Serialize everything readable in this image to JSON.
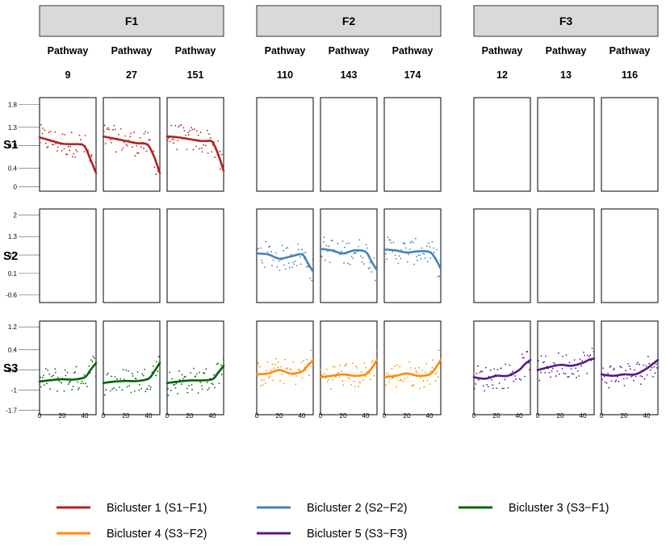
{
  "chart_data": {
    "type": "line",
    "facet_columns": [
      {
        "id": "F1",
        "label": "F1",
        "pathways": [
          {
            "line1": "Pathway",
            "line2": "9"
          },
          {
            "line1": "Pathway",
            "line2": "27"
          },
          {
            "line1": "Pathway",
            "line2": "151"
          }
        ]
      },
      {
        "id": "F2",
        "label": "F2",
        "pathways": [
          {
            "line1": "Pathway",
            "line2": "110"
          },
          {
            "line1": "Pathway",
            "line2": "143"
          },
          {
            "line1": "Pathway",
            "line2": "174"
          }
        ]
      },
      {
        "id": "F3",
        "label": "F3",
        "pathways": [
          {
            "line1": "Pathway",
            "line2": "12"
          },
          {
            "line1": "Pathway",
            "line2": "13"
          },
          {
            "line1": "Pathway",
            "line2": "116"
          }
        ]
      }
    ],
    "facet_rows": [
      {
        "id": "S1",
        "label": "S1",
        "y_ticks": [
          "1.8",
          "1.3",
          "0.9",
          "0.4",
          "0"
        ],
        "y_tick_values": [
          1.8,
          1.3,
          0.9,
          0.4,
          0
        ],
        "ylim": [
          -0.1,
          1.95
        ]
      },
      {
        "id": "S2",
        "label": "S2",
        "y_ticks": [
          "2",
          "1.3",
          "0.7",
          "0.1",
          "-0.6"
        ],
        "y_tick_values": [
          2,
          1.3,
          0.7,
          0.1,
          -0.6
        ],
        "ylim": [
          -0.85,
          2.2
        ]
      },
      {
        "id": "S3",
        "label": "S3",
        "y_ticks": [
          "1.2",
          "0.4",
          "-0.3",
          "-1",
          "-1.7"
        ],
        "y_tick_values": [
          1.2,
          0.4,
          -0.3,
          -1,
          -1.7
        ],
        "ylim": [
          -1.85,
          1.4
        ]
      }
    ],
    "x_ticks": [
      "0",
      "20",
      "40"
    ],
    "x_tick_values": [
      0,
      20,
      40
    ],
    "xlim": [
      0,
      50
    ],
    "series": [
      {
        "name": "Bicluster 1 (S1−F1)",
        "row": 0,
        "col_group": 0,
        "color": "#b22222",
        "panels": [
          {
            "x": [
              0,
              10,
              20,
              30,
              35,
              40,
              45,
              50
            ],
            "y": [
              1.08,
              1.01,
              0.94,
              0.93,
              0.93,
              0.88,
              0.6,
              0.3
            ]
          },
          {
            "x": [
              0,
              10,
              20,
              30,
              35,
              40,
              45,
              50
            ],
            "y": [
              1.1,
              1.05,
              1.0,
              0.95,
              0.95,
              0.9,
              0.65,
              0.3
            ]
          },
          {
            "x": [
              0,
              10,
              20,
              30,
              35,
              40,
              45,
              50
            ],
            "y": [
              1.1,
              1.08,
              1.04,
              1.0,
              1.0,
              0.98,
              0.72,
              0.35
            ]
          }
        ]
      },
      {
        "name": "Bicluster 2 (S2−F2)",
        "row": 1,
        "col_group": 1,
        "color": "#4682b4",
        "panels": [
          {
            "x": [
              0,
              10,
              20,
              30,
              40,
              45,
              50
            ],
            "y": [
              0.75,
              0.72,
              0.58,
              0.65,
              0.72,
              0.45,
              0.15
            ]
          },
          {
            "x": [
              0,
              10,
              20,
              30,
              40,
              45,
              50
            ],
            "y": [
              0.9,
              0.85,
              0.75,
              0.85,
              0.8,
              0.5,
              0.2
            ]
          },
          {
            "x": [
              0,
              10,
              20,
              30,
              40,
              45,
              50
            ],
            "y": [
              0.88,
              0.85,
              0.78,
              0.82,
              0.8,
              0.6,
              0.25
            ]
          }
        ]
      },
      {
        "name": "Bicluster 3 (S3−F1)",
        "row": 2,
        "col_group": 0,
        "color": "#006400",
        "panels": [
          {
            "x": [
              0,
              10,
              20,
              30,
              40,
              45,
              50
            ],
            "y": [
              -0.7,
              -0.65,
              -0.62,
              -0.63,
              -0.55,
              -0.3,
              -0.05
            ]
          },
          {
            "x": [
              0,
              10,
              20,
              30,
              40,
              45,
              50
            ],
            "y": [
              -0.75,
              -0.7,
              -0.68,
              -0.68,
              -0.6,
              -0.35,
              -0.05
            ]
          },
          {
            "x": [
              0,
              10,
              20,
              30,
              40,
              45,
              50
            ],
            "y": [
              -0.75,
              -0.7,
              -0.66,
              -0.66,
              -0.62,
              -0.4,
              -0.15
            ]
          }
        ]
      },
      {
        "name": "Bicluster 4 (S3−F2)",
        "row": 2,
        "col_group": 1,
        "color": "#ff8c00",
        "panels": [
          {
            "x": [
              0,
              10,
              20,
              30,
              40,
              45,
              50
            ],
            "y": [
              -0.45,
              -0.42,
              -0.3,
              -0.42,
              -0.35,
              -0.15,
              0.05
            ]
          },
          {
            "x": [
              0,
              10,
              20,
              30,
              40,
              45,
              50
            ],
            "y": [
              -0.55,
              -0.5,
              -0.45,
              -0.5,
              -0.45,
              -0.25,
              0.05
            ]
          },
          {
            "x": [
              0,
              10,
              20,
              30,
              40,
              45,
              50
            ],
            "y": [
              -0.55,
              -0.5,
              -0.42,
              -0.5,
              -0.45,
              -0.25,
              0.05
            ]
          }
        ]
      },
      {
        "name": "Bicluster 5 (S3−F3)",
        "row": 2,
        "col_group": 2,
        "color": "#551a8b",
        "panels": [
          {
            "x": [
              0,
              10,
              20,
              30,
              40,
              45,
              50
            ],
            "y": [
              -0.55,
              -0.6,
              -0.5,
              -0.5,
              -0.3,
              -0.1,
              0.05
            ]
          },
          {
            "x": [
              0,
              10,
              20,
              30,
              40,
              45,
              50
            ],
            "y": [
              -0.3,
              -0.2,
              -0.12,
              -0.15,
              -0.05,
              0.05,
              0.1
            ]
          },
          {
            "x": [
              0,
              10,
              20,
              30,
              40,
              45,
              50
            ],
            "y": [
              -0.45,
              -0.5,
              -0.45,
              -0.45,
              -0.25,
              -0.1,
              0.05
            ]
          }
        ]
      }
    ],
    "legend": {
      "placement": "bottom",
      "entries": [
        {
          "label": "Bicluster 1 (S1−F1)",
          "color": "#b22222"
        },
        {
          "label": "Bicluster 2 (S2−F2)",
          "color": "#4682b4"
        },
        {
          "label": "Bicluster 3 (S3−F1)",
          "color": "#006400"
        },
        {
          "label": "Bicluster 4 (S3−F2)",
          "color": "#ff8c00"
        },
        {
          "label": "Bicluster 5 (S3−F3)",
          "color": "#551a8b"
        }
      ]
    },
    "scatter_points_shown": true,
    "grid": false
  }
}
